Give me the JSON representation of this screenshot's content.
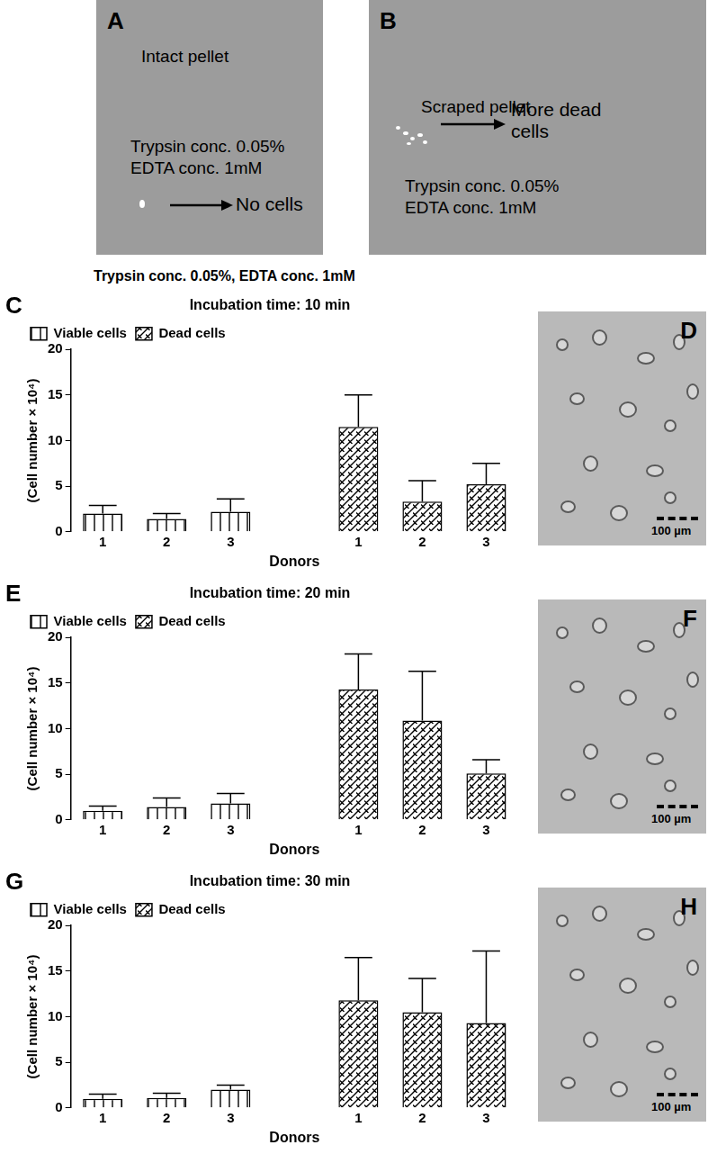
{
  "photos": [
    {
      "panel": "A",
      "title": "Intact pellet",
      "text": [
        "Trypsin conc. 0.05%",
        "EDTA conc. 1mM"
      ],
      "arrow_label": [
        "No cells"
      ]
    },
    {
      "panel": "B",
      "title": "Scraped pellet",
      "text": [
        "Trypsin conc. 0.05%",
        "EDTA conc. 1mM"
      ],
      "arrow_label": [
        "More dead",
        "cells"
      ]
    }
  ],
  "caption": "Trypsin conc. 0.05%, EDTA conc. 1mM",
  "micrographs": [
    {
      "panel": "D",
      "scale_bar": "100 µm"
    },
    {
      "panel": "F",
      "scale_bar": "100 µm"
    },
    {
      "panel": "H",
      "scale_bar": "100 µm"
    }
  ],
  "chart_data": [
    {
      "type": "bar",
      "panel": "C",
      "title": "Incubation time: 10 min",
      "x_label": "Donors",
      "y_label": "(Cell number × 10⁴)",
      "categories": [
        "1",
        "2",
        "3",
        null,
        "1",
        "2",
        "3"
      ],
      "series": [
        {
          "name": "Viable cells",
          "color": "#000000",
          "values": [
            2.0,
            1.4,
            2.2,
            null,
            null,
            null,
            null
          ],
          "errors": [
            0.9,
            0.6,
            1.4,
            null,
            null,
            null,
            null
          ]
        },
        {
          "name": "Dead cells",
          "color": "#000000",
          "values": [
            null,
            null,
            null,
            null,
            11.5,
            3.3,
            5.2
          ],
          "errors": [
            null,
            null,
            null,
            null,
            3.5,
            2.3,
            2.3
          ]
        }
      ],
      "ylim": [
        0,
        20
      ],
      "yticks": [
        0,
        5,
        10,
        15,
        20
      ],
      "grid": false,
      "legend": "top"
    },
    {
      "type": "bar",
      "panel": "E",
      "title": "Incubation time: 20 min",
      "x_label": "Donors",
      "y_label": "(Cell number × 10⁴)",
      "categories": [
        "1",
        "2",
        "3",
        null,
        "1",
        "2",
        "3"
      ],
      "series": [
        {
          "name": "Viable cells",
          "color": "#000000",
          "values": [
            1.0,
            1.4,
            1.8,
            null,
            null,
            null,
            null
          ],
          "errors": [
            0.5,
            1.0,
            1.1,
            null,
            null,
            null,
            null
          ]
        },
        {
          "name": "Dead cells",
          "color": "#000000",
          "values": [
            null,
            null,
            null,
            null,
            14.3,
            10.9,
            5.1
          ],
          "errors": [
            null,
            null,
            null,
            null,
            3.9,
            5.4,
            1.5
          ]
        }
      ],
      "ylim": [
        0,
        20
      ],
      "yticks": [
        0,
        5,
        10,
        15,
        20
      ],
      "grid": false,
      "legend": "top"
    },
    {
      "type": "bar",
      "panel": "G",
      "title": "Incubation time: 30 min",
      "x_label": "Donors",
      "y_label": "(Cell number × 10⁴)",
      "categories": [
        "1",
        "2",
        "3",
        null,
        "1",
        "2",
        "3"
      ],
      "series": [
        {
          "name": "Viable cells",
          "color": "#000000",
          "values": [
            1.0,
            1.1,
            2.0,
            null,
            null,
            null,
            null
          ],
          "errors": [
            0.5,
            0.5,
            0.5,
            null,
            null,
            null,
            null
          ]
        },
        {
          "name": "Dead cells",
          "color": "#000000",
          "values": [
            null,
            null,
            null,
            null,
            11.8,
            10.5,
            9.3
          ],
          "errors": [
            null,
            null,
            null,
            null,
            4.7,
            3.7,
            7.9
          ]
        }
      ],
      "ylim": [
        0,
        20
      ],
      "yticks": [
        0,
        5,
        10,
        15,
        20
      ],
      "grid": false,
      "legend": "top"
    }
  ]
}
